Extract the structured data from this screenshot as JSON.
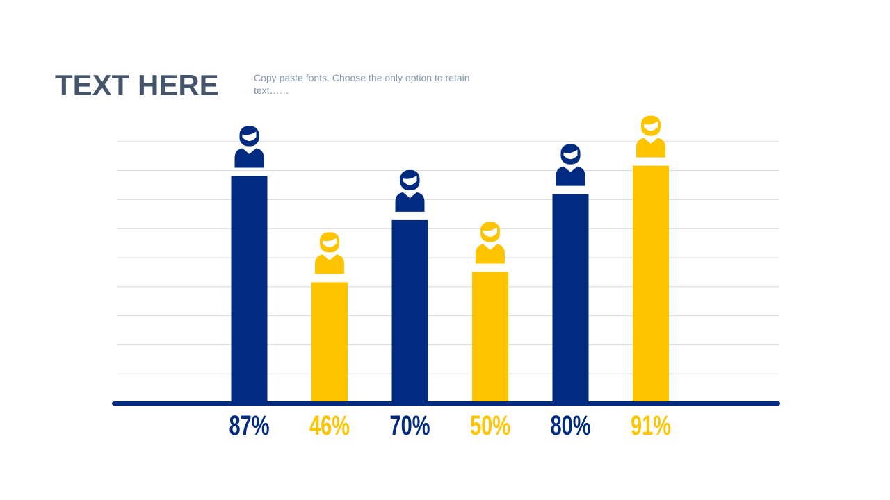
{
  "header": {
    "title": "TEXT HERE",
    "subtitle": "Copy paste fonts. Choose the only option to retain text……"
  },
  "colors": {
    "navy": "#002b80",
    "yellow": "#ffc400",
    "grid": "#d9d9d9",
    "title": "#44546a",
    "subtitle": "#8497b0"
  },
  "chart_data": {
    "type": "bar",
    "categories": [
      "",
      "",
      "",
      "",
      "",
      ""
    ],
    "values": [
      87,
      46,
      70,
      50,
      80,
      91
    ],
    "labels": [
      "87%",
      "46%",
      "70%",
      "50%",
      "80%",
      "91%"
    ],
    "bar_colors": [
      "navy",
      "yellow",
      "navy",
      "yellow",
      "navy",
      "yellow"
    ],
    "icon": "person-icon",
    "title": "",
    "xlabel": "",
    "ylabel": "",
    "ylim": [
      0,
      100
    ],
    "grid": true,
    "legend": "none"
  }
}
